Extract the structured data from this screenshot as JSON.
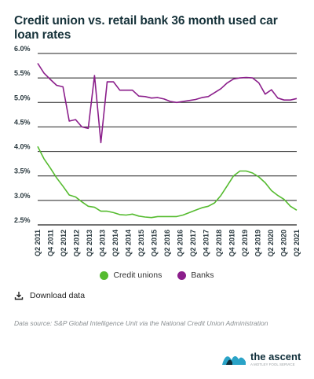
{
  "title": "Credit union vs. retail bank 36 month used car loan rates",
  "download_label": "Download data",
  "source_text": "Data source: S&P Global Intelligence Unit via the National Credit Union Administration",
  "brand": {
    "name": "the ascent",
    "tagline": "A MOTLEY FOOL SERVICE"
  },
  "colors": {
    "credit_unions": "#55bb2f",
    "banks": "#8b1e8b",
    "axis": "#222222"
  },
  "chart_data": {
    "type": "line",
    "title": "Credit union vs. retail bank 36 month used car loan rates",
    "xlabel": "",
    "ylabel": "",
    "ylim": [
      2.5,
      6.0
    ],
    "ytick_labels": [
      "2.5%",
      "3.0%",
      "3.5%",
      "4.0%",
      "4.5%",
      "5.0%",
      "5.5%",
      "6.0%"
    ],
    "yticks": [
      2.5,
      3.0,
      3.5,
      4.0,
      4.5,
      5.0,
      5.5,
      6.0
    ],
    "xtick_labels": [
      "Q2 2011",
      "Q4 2011",
      "Q2 2012",
      "Q4 2012",
      "Q2 2013",
      "Q4 2013",
      "Q2 2014",
      "Q4 2014",
      "Q2 2015",
      "Q4 2015",
      "Q2 2016",
      "Q4 2016",
      "Q2 2017",
      "Q4 2017",
      "Q2 2018",
      "Q4 2018",
      "Q2 2019",
      "Q4 2019",
      "Q2 2020",
      "Q4 2020",
      "Q2 2021"
    ],
    "grid": "horizontal",
    "legend_position": "bottom",
    "series": [
      {
        "name": "Credit unions",
        "color": "#55bb2f",
        "values": [
          4.1,
          3.85,
          3.66,
          3.46,
          3.29,
          3.11,
          3.07,
          2.97,
          2.88,
          2.86,
          2.78,
          2.78,
          2.75,
          2.71,
          2.7,
          2.72,
          2.68,
          2.66,
          2.65,
          2.67,
          2.67,
          2.67,
          2.67,
          2.7,
          2.75,
          2.8,
          2.85,
          2.88,
          2.95,
          3.1,
          3.3,
          3.5,
          3.6,
          3.6,
          3.56,
          3.48,
          3.36,
          3.2,
          3.1,
          3.02,
          2.88,
          2.8
        ]
      },
      {
        "name": "Banks",
        "color": "#8b1e8b",
        "values": [
          5.8,
          5.6,
          5.47,
          5.35,
          5.32,
          4.62,
          4.65,
          4.5,
          4.47,
          5.55,
          4.18,
          5.42,
          5.42,
          5.25,
          5.25,
          5.25,
          5.13,
          5.12,
          5.09,
          5.1,
          5.07,
          5.02,
          5.0,
          5.02,
          5.04,
          5.06,
          5.1,
          5.12,
          5.2,
          5.28,
          5.4,
          5.48,
          5.5,
          5.51,
          5.5,
          5.4,
          5.17,
          5.26,
          5.09,
          5.05,
          5.05,
          5.08
        ]
      }
    ]
  }
}
